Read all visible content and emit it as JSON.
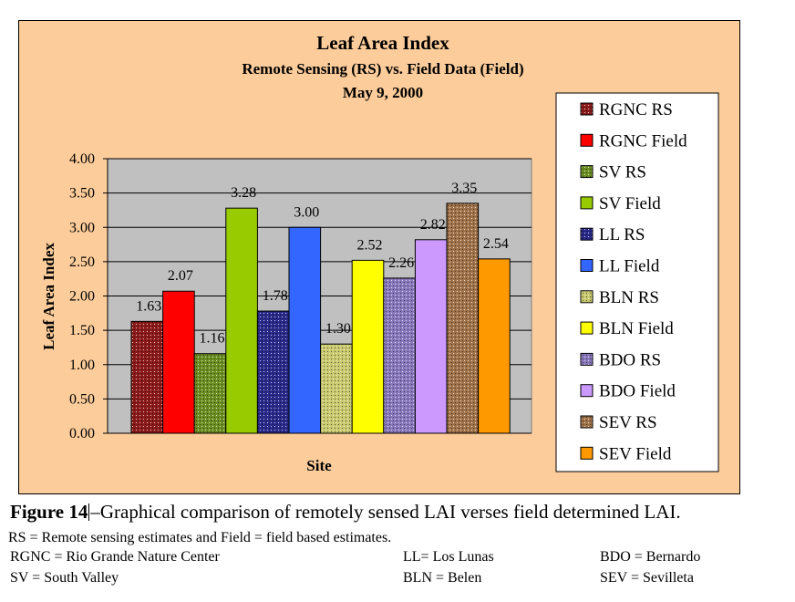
{
  "chart_data": {
    "type": "bar",
    "title": "Leaf Area Index",
    "subtitle": "Remote Sensing (RS) vs. Field Data (Field)",
    "date": "May 9, 2000",
    "xlabel": "Site",
    "ylabel": "Leaf Area Index",
    "ylim": [
      0,
      4
    ],
    "yticks": [
      "0.00",
      "0.50",
      "1.00",
      "1.50",
      "2.00",
      "2.50",
      "3.00",
      "3.50",
      "4.00"
    ],
    "grid": true,
    "legend_position": "right",
    "series": [
      {
        "name": "RGNC RS",
        "value": 1.63,
        "label": "1.63",
        "color": "#8b1a1a",
        "pattern": "dots"
      },
      {
        "name": "RGNC Field",
        "value": 2.07,
        "label": "2.07",
        "color": "#ff0000",
        "pattern": "solid"
      },
      {
        "name": "SV RS",
        "value": 1.16,
        "label": "1.16",
        "color": "#6b8e23",
        "pattern": "dots"
      },
      {
        "name": "SV Field",
        "value": 3.28,
        "label": "3.28",
        "color": "#99cc00",
        "pattern": "solid"
      },
      {
        "name": "LL RS",
        "value": 1.78,
        "label": "1.78",
        "color": "#2a2a8a",
        "pattern": "dots"
      },
      {
        "name": "LL Field",
        "value": 3.0,
        "label": "3.00",
        "color": "#3366ff",
        "pattern": "solid"
      },
      {
        "name": "BLN RS",
        "value": 1.3,
        "label": "1.30",
        "color": "#c8c86e",
        "pattern": "dots"
      },
      {
        "name": "BLN Field",
        "value": 2.52,
        "label": "2.52",
        "color": "#ffff00",
        "pattern": "solid"
      },
      {
        "name": "BDO RS",
        "value": 2.26,
        "label": "2.26",
        "color": "#8878bb",
        "pattern": "dots"
      },
      {
        "name": "BDO Field",
        "value": 2.82,
        "label": "2.82",
        "color": "#cc99ff",
        "pattern": "solid"
      },
      {
        "name": "SEV RS",
        "value": 3.35,
        "label": "3.35",
        "color": "#a0724a",
        "pattern": "dots"
      },
      {
        "name": "SEV Field",
        "value": 2.54,
        "label": "2.54",
        "color": "#ff9900",
        "pattern": "solid"
      }
    ]
  },
  "caption": {
    "figure_label": "Figure 14",
    "figure_text": "–Graphical comparison of remotely sensed LAI verses field determined LAI.",
    "rs_line": "RS = Remote sensing estimates and Field = field based estimates."
  },
  "abbreviations": {
    "rgnc": "RGNC = Rio Grande Nature Center",
    "sv": "SV = South Valley",
    "ll": "LL= Los Lunas",
    "bln": "BLN = Belen",
    "bdo": "BDO = Bernardo",
    "sev": "SEV = Sevilleta"
  }
}
